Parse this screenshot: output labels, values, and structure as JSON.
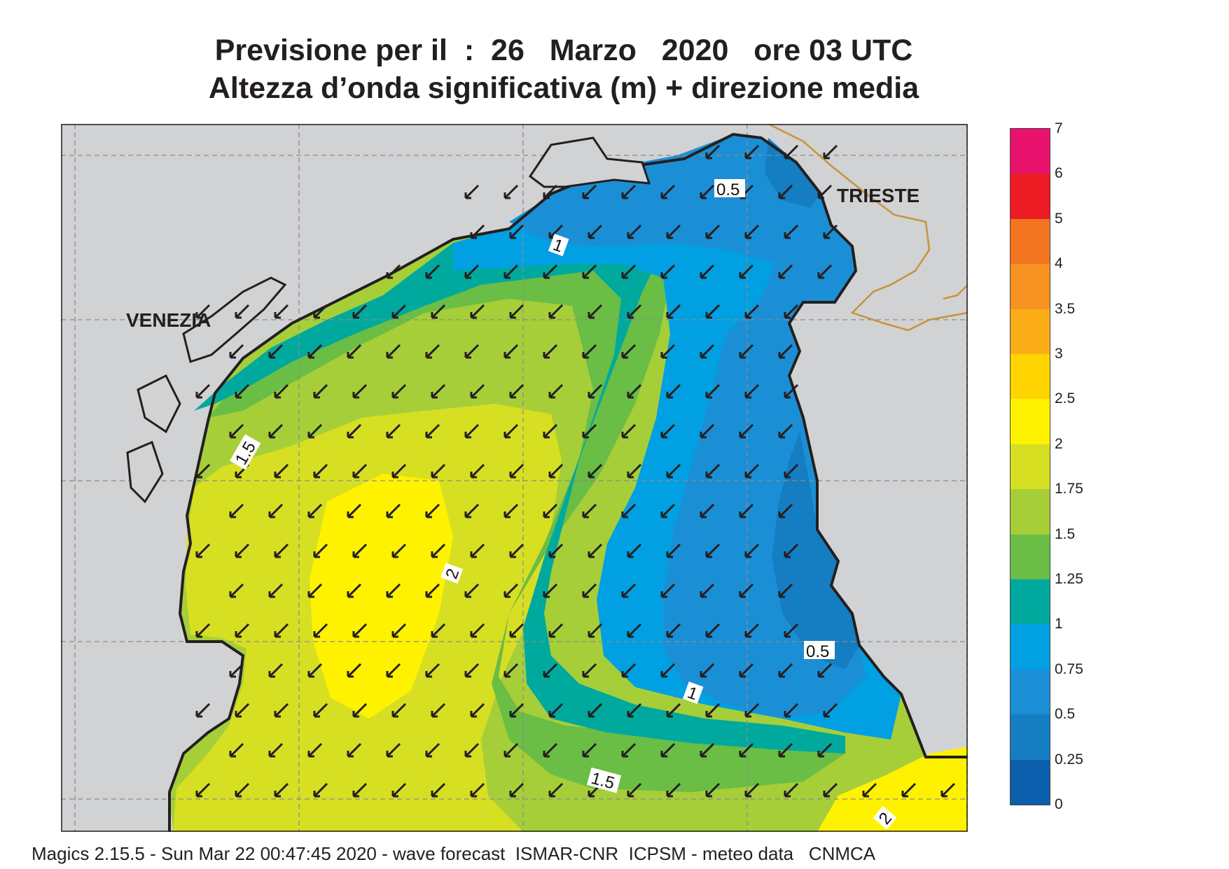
{
  "title": {
    "line1": "Previsione per il  :  26   Marzo   2020   ore 03 UTC",
    "line2": "Altezza d’onda significativa (m) + direzione media"
  },
  "map": {
    "cities": [
      "VENEZIA",
      "TRIESTE"
    ],
    "contour_labels": [
      "0.5",
      "1",
      "1.5",
      "1.5",
      "2",
      "0.5",
      "1",
      "1.5",
      "2"
    ],
    "land_color": "#d1d2d4",
    "coastline_color": "#231f20",
    "border_color": "#c7943a",
    "arrow_direction": "southwest"
  },
  "legend": {
    "ticks": [
      "7",
      "6",
      "5",
      "4",
      "3.5",
      "3",
      "2.5",
      "2",
      "1.75",
      "1.5",
      "1.25",
      "1",
      "0.75",
      "0.5",
      "0.25",
      "0"
    ],
    "colors": [
      "#e9136d",
      "#ed1c24",
      "#f37421",
      "#f79320",
      "#fbad18",
      "#ffd400",
      "#fff200",
      "#d7df23",
      "#a6ce39",
      "#6abd45",
      "#00a99d",
      "#00a0e3",
      "#1b8fd6",
      "#157dc2",
      "#0b5fac"
    ]
  },
  "footer": "Magics 2.15.5 - Sun Mar 22 00:47:45 2020 - wave forecast  ISMAR-CNR  ICPSM - meteo data   CNMCA"
}
